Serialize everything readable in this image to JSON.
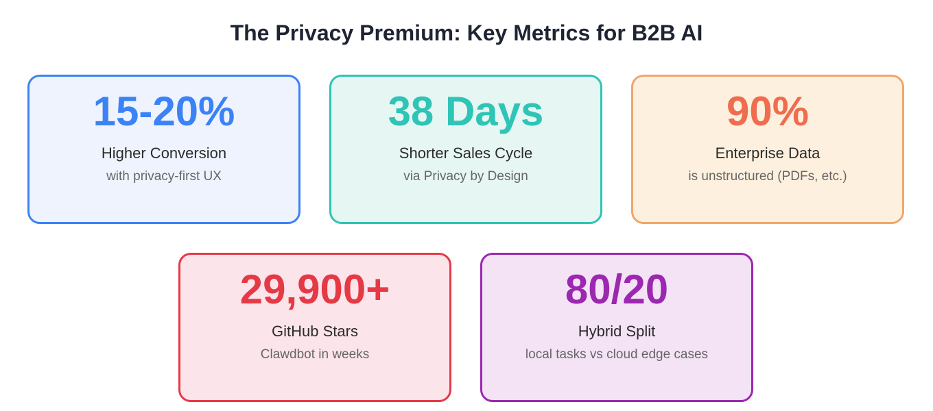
{
  "title": "The Privacy Premium: Key Metrics for B2B AI",
  "cards": [
    {
      "value": "15-20%",
      "label": "Higher Conversion",
      "sub": "with privacy-first UX",
      "accent": "#3b82f6",
      "background": "#eef3fe"
    },
    {
      "value": "38 Days",
      "label": "Shorter Sales Cycle",
      "sub": "via Privacy by Design",
      "accent": "#2ec4b6",
      "background": "#e6f6f3"
    },
    {
      "value": "90%",
      "label": "Enterprise Data",
      "sub": "is unstructured (PDFs, etc.)",
      "accent": "#ef6c4f",
      "border": "#f0a66c",
      "background": "#fef0de"
    },
    {
      "value": "29,900+",
      "label": "GitHub Stars",
      "sub": "Clawdbot in weeks",
      "accent": "#e63946",
      "background": "#fbe4ea"
    },
    {
      "value": "80/20",
      "label": "Hybrid Split",
      "sub": "local tasks vs cloud edge cases",
      "accent": "#9c27b0",
      "background": "#f3e3f5"
    }
  ]
}
